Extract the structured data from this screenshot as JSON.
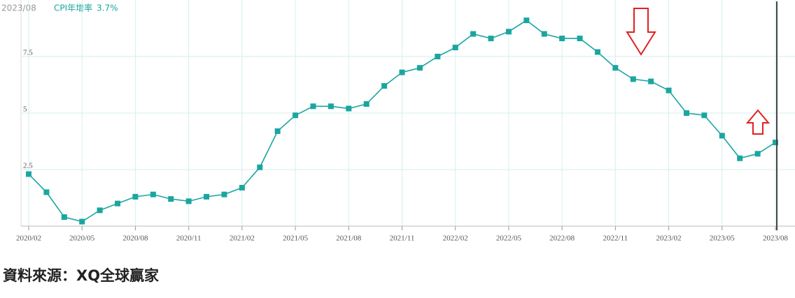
{
  "chart_data": {
    "type": "line",
    "readout": {
      "date": "2023/08",
      "value": "3.7%"
    },
    "categories": [
      "2020/02",
      null,
      null,
      "2020/05",
      null,
      null,
      "2020/08",
      null,
      null,
      "2020/11",
      null,
      null,
      "2021/02",
      null,
      null,
      "2021/05",
      null,
      null,
      "2021/08",
      null,
      null,
      "2021/11",
      null,
      null,
      "2022/02",
      null,
      null,
      "2022/05",
      null,
      null,
      "2022/08",
      null,
      null,
      "2022/11",
      null,
      null,
      "2023/02",
      null,
      null,
      "2023/05",
      null,
      null,
      "2023/08"
    ],
    "series": [
      {
        "name": "CPI年增率",
        "color": "#1aa6a0",
        "values": [
          2.3,
          1.5,
          0.4,
          0.2,
          0.7,
          1.0,
          1.3,
          1.4,
          1.2,
          1.1,
          1.3,
          1.4,
          1.7,
          2.6,
          4.2,
          4.9,
          5.3,
          5.3,
          5.2,
          5.4,
          6.2,
          6.8,
          7.0,
          7.5,
          7.9,
          8.5,
          8.3,
          8.6,
          9.1,
          8.5,
          8.3,
          8.3,
          7.7,
          7.0,
          6.5,
          6.4,
          6.0,
          5.0,
          4.9,
          4.0,
          3.0,
          3.2,
          3.7
        ]
      }
    ],
    "ylim": [
      0,
      10
    ],
    "yticks": [
      2.5,
      5,
      7.5
    ],
    "grid": true
  },
  "footer": {
    "source": "資料來源：XQ全球贏家"
  }
}
